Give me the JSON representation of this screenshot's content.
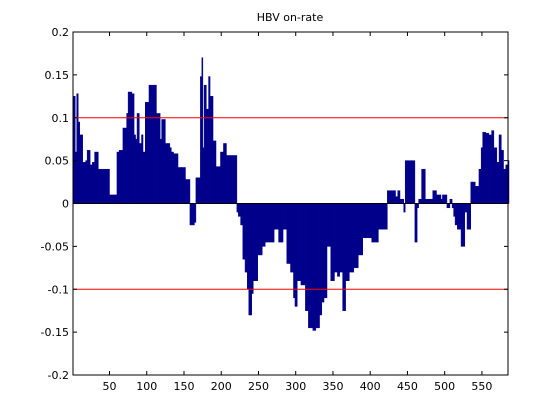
{
  "chart_data": {
    "type": "bar",
    "title": "HBV on-rate",
    "xlabel": "",
    "ylabel": "",
    "xlim": [
      1,
      585
    ],
    "ylim": [
      -0.2,
      0.2
    ],
    "xticks": [
      50,
      100,
      150,
      200,
      250,
      300,
      350,
      400,
      450,
      500,
      550
    ],
    "yticks": [
      -0.2,
      -0.15,
      -0.1,
      -0.05,
      0,
      0.05,
      0.1,
      0.15,
      0.2
    ],
    "ytick_labels": [
      "-0.2",
      "-0.15",
      "-0.1",
      "-0.05",
      "0",
      "0.05",
      "0.1",
      "0.15",
      "0.2"
    ],
    "grid": false,
    "bar_color": "#00008b",
    "reference_lines": {
      "values": [
        0.1,
        -0.1
      ],
      "color": "#ff0000"
    },
    "series": [
      {
        "x": [
          1,
          4,
          6,
          8,
          10,
          14,
          18,
          20,
          24,
          27,
          30,
          35,
          50,
          55,
          60,
          63,
          68,
          73,
          75,
          80,
          83,
          85,
          87,
          90,
          93,
          95,
          98,
          103,
          113,
          118,
          120,
          125,
          131,
          133,
          136,
          139,
          142,
          147,
          152,
          158,
          164,
          166,
          170,
          172,
          174,
          175,
          177,
          180,
          183,
          185,
          189,
          193,
          199,
          203,
          207,
          221,
          223,
          226,
          229,
          232,
          235,
          237,
          239,
          241,
          243,
          249,
          255,
          259,
          265,
          271,
          277,
          283,
          288,
          293,
          297,
          299,
          302,
          307,
          313,
          317,
          323,
          327,
          332,
          335,
          338,
          342,
          347,
          352,
          356,
          359,
          363,
          367,
          372,
          378,
          384,
          390,
          400,
          402,
          411,
          423,
          431,
          434,
          437,
          440,
          445,
          447,
          455,
          460,
          463,
          465,
          469,
          474,
          480,
          484,
          489,
          495,
          497,
          503,
          507,
          510,
          512,
          514,
          517,
          522,
          527,
          530,
          535,
          537,
          541,
          546,
          549,
          551,
          555,
          559,
          563,
          566,
          570,
          573,
          576,
          579,
          582,
          585
        ],
        "y": [
          0.125,
          0.06,
          0.128,
          0.095,
          0.08,
          0.048,
          0.05,
          0.062,
          0.045,
          0.048,
          0.06,
          0.04,
          0.01,
          0.01,
          0.06,
          0.062,
          0.088,
          0.105,
          0.13,
          0.128,
          0.08,
          0.075,
          0.105,
          0.07,
          0.08,
          0.06,
          0.118,
          0.138,
          0.105,
          0.075,
          0.098,
          0.07,
          0.065,
          0.06,
          0.058,
          0.058,
          0.042,
          0.042,
          0.028,
          -0.025,
          -0.022,
          0.03,
          0.03,
          0.148,
          0.17,
          0.065,
          0.138,
          0.11,
          0.148,
          0.125,
          0.073,
          0.043,
          0.06,
          0.07,
          0.056,
          -0.01,
          -0.015,
          -0.025,
          -0.065,
          -0.08,
          -0.1,
          -0.13,
          -0.13,
          -0.105,
          -0.09,
          -0.06,
          -0.05,
          -0.045,
          -0.045,
          -0.03,
          -0.045,
          -0.03,
          -0.07,
          -0.08,
          -0.11,
          -0.12,
          -0.09,
          -0.095,
          -0.125,
          -0.145,
          -0.148,
          -0.145,
          -0.13,
          -0.115,
          -0.11,
          -0.05,
          -0.09,
          -0.08,
          -0.085,
          -0.08,
          -0.125,
          -0.09,
          -0.08,
          -0.075,
          -0.06,
          -0.04,
          -0.04,
          -0.045,
          -0.03,
          0.015,
          0.015,
          0.008,
          0.015,
          0.005,
          -0.01,
          0.05,
          0.05,
          -0.045,
          -0.005,
          0.005,
          0.04,
          0.005,
          0.005,
          0.015,
          0.01,
          0.005,
          0.01,
          -0.005,
          0.005,
          -0.005,
          -0.015,
          -0.025,
          -0.03,
          -0.05,
          -0.01,
          -0.03,
          0.025,
          0.025,
          0.02,
          0.04,
          0.065,
          0.083,
          0.082,
          0.08,
          0.085,
          0.065,
          0.048,
          0.08,
          0.062,
          0.04,
          0.045,
          0.05
        ]
      }
    ]
  }
}
